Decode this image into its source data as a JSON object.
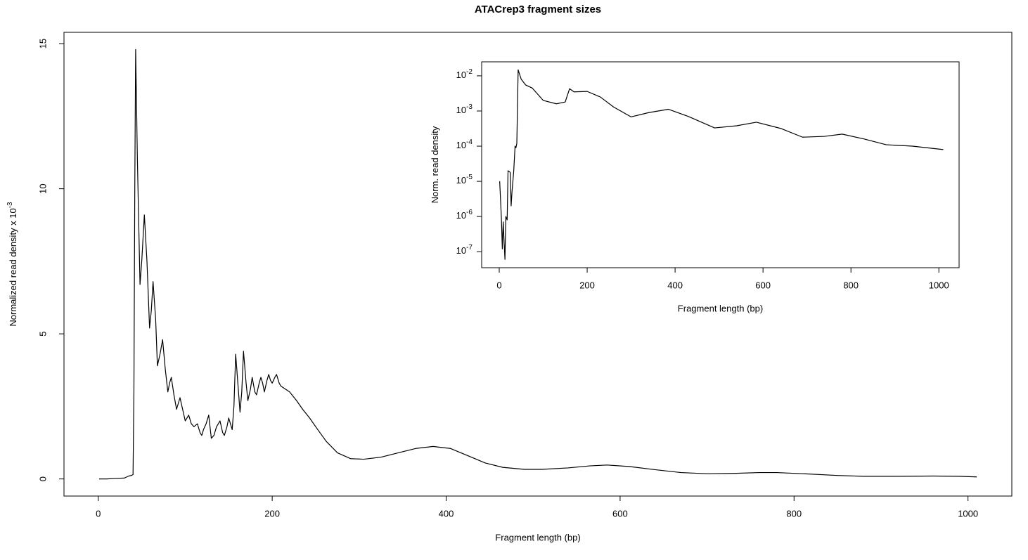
{
  "chart_data": [
    {
      "type": "line",
      "title": "ATACrep3 fragment sizes",
      "x_label": "Fragment length (bp)",
      "y_label": "Normalized read density x 10",
      "y_label_exponent": "-3",
      "xlim": [
        -39.4,
        1050.4
      ],
      "ylim": [
        -0.59,
        15.39
      ],
      "xticks": [
        0,
        200,
        400,
        600,
        800,
        1000
      ],
      "yticks": [
        0,
        5,
        10,
        15
      ],
      "color": "#000000",
      "x": [
        1,
        10,
        20,
        30,
        35,
        38,
        40,
        41,
        42,
        43,
        45,
        48,
        50,
        53,
        56,
        59,
        61,
        63,
        66,
        68,
        71,
        74,
        77,
        80,
        82,
        84,
        87,
        90,
        92,
        94,
        97,
        100,
        102,
        104,
        107,
        110,
        112,
        114,
        117,
        119,
        121,
        124,
        127,
        130,
        133,
        136,
        140,
        143,
        145,
        148,
        150,
        152,
        154,
        156,
        158,
        160,
        163,
        165,
        167,
        170,
        172,
        175,
        177,
        180,
        182,
        185,
        187,
        189,
        191,
        194,
        196,
        198,
        200,
        203,
        205,
        208,
        210,
        215,
        220,
        228,
        235,
        243,
        250,
        262,
        275,
        290,
        305,
        325,
        345,
        365,
        385,
        405,
        425,
        445,
        465,
        490,
        510,
        540,
        565,
        585,
        610,
        640,
        670,
        700,
        730,
        760,
        780,
        810,
        850,
        880,
        920,
        960,
        990,
        1010
      ],
      "values": [
        0,
        0,
        0.02,
        0.03,
        0.1,
        0.12,
        0.15,
        3,
        10,
        14.8,
        11,
        6.7,
        7.5,
        9.1,
        7.5,
        5.2,
        5.8,
        6.8,
        5.5,
        3.9,
        4.3,
        4.8,
        3.8,
        3.0,
        3.3,
        3.5,
        2.9,
        2.4,
        2.6,
        2.8,
        2.4,
        2.0,
        2.1,
        2.2,
        1.9,
        1.8,
        1.85,
        1.9,
        1.6,
        1.5,
        1.7,
        1.9,
        2.2,
        1.4,
        1.5,
        1.8,
        2.0,
        1.6,
        1.5,
        1.8,
        2.1,
        1.9,
        1.7,
        2.5,
        4.3,
        3.5,
        2.3,
        3.0,
        4.4,
        3.3,
        2.7,
        3.1,
        3.5,
        3.0,
        2.9,
        3.3,
        3.5,
        3.3,
        3.0,
        3.4,
        3.6,
        3.4,
        3.3,
        3.5,
        3.6,
        3.3,
        3.2,
        3.1,
        3.0,
        2.7,
        2.4,
        2.1,
        1.8,
        1.3,
        0.9,
        0.7,
        0.68,
        0.75,
        0.9,
        1.05,
        1.12,
        1.05,
        0.8,
        0.55,
        0.4,
        0.33,
        0.33,
        0.38,
        0.45,
        0.48,
        0.43,
        0.32,
        0.22,
        0.18,
        0.19,
        0.22,
        0.22,
        0.18,
        0.12,
        0.09,
        0.09,
        0.1,
        0.09,
        0.07
      ]
    },
    {
      "type": "line",
      "x_label": "Fragment length (bp)",
      "y_label": "Norm. read density",
      "log_y": true,
      "xlim": [
        -40,
        1046
      ],
      "ylim": [
        3.5e-08,
        0.025
      ],
      "xticks": [
        0,
        200,
        400,
        600,
        800,
        1000
      ],
      "yticks": [
        {
          "value": 1e-07,
          "label": "10-7"
        },
        {
          "value": 1e-06,
          "label": "10-6"
        },
        {
          "value": 1e-05,
          "label": "10-5"
        },
        {
          "value": 0.0001,
          "label": "10-4"
        },
        {
          "value": 0.001,
          "label": "10-3"
        },
        {
          "value": 0.01,
          "label": "10-2"
        }
      ],
      "color": "#000000",
      "x": [
        1,
        3,
        5,
        7,
        9,
        11,
        13,
        15,
        18,
        20,
        25,
        27,
        29,
        33,
        36,
        38,
        40,
        43,
        50,
        60,
        75,
        100,
        130,
        150,
        160,
        170,
        200,
        230,
        260,
        300,
        340,
        385,
        430,
        490,
        540,
        585,
        640,
        690,
        740,
        780,
        830,
        880,
        940,
        1010
      ],
      "values": [
        1e-05,
        3e-06,
        8e-07,
        1.2e-07,
        7e-07,
        2e-07,
        6e-08,
        1e-06,
        8e-07,
        2e-05,
        1.8e-05,
        2e-06,
        5e-06,
        2e-05,
        0.0001,
        9e-05,
        0.00012,
        0.0148,
        0.008,
        0.0055,
        0.0045,
        0.002,
        0.0016,
        0.0018,
        0.0043,
        0.0035,
        0.0036,
        0.0025,
        0.0013,
        0.00068,
        0.0009,
        0.00112,
        0.0007,
        0.00033,
        0.00038,
        0.00048,
        0.00032,
        0.00018,
        0.00019,
        0.00022,
        0.00016,
        0.00011,
        0.0001,
        8e-05
      ]
    }
  ]
}
